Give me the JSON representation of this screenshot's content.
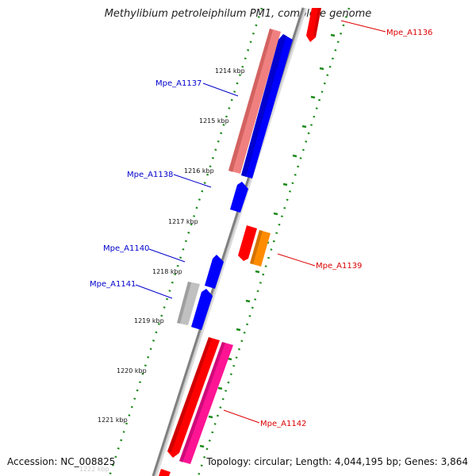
{
  "title": "Methylibium petroleiphilum PM1, complete genome",
  "accession": "Accession: NC_008825",
  "summary": "Topology: circular; Length: 4,044,195 bp; Genes: 3,864",
  "ticks": [
    {
      "label": "1214 kbp"
    },
    {
      "label": "1215 kbp"
    },
    {
      "label": "1216 kbp"
    },
    {
      "label": "1217 kbp"
    },
    {
      "label": "1218 kbp"
    },
    {
      "label": "1219 kbp"
    },
    {
      "label": "1220 kbp"
    },
    {
      "label": "1221 kbp"
    },
    {
      "label": "1222 kbp"
    }
  ],
  "genes": [
    {
      "name": "Mpe_A1136",
      "strand": "reverse",
      "color": "#ff0000"
    },
    {
      "name": "Mpe_A1137",
      "strand": "forward",
      "color": "#0000ff"
    },
    {
      "name": "Mpe_A1138",
      "strand": "forward",
      "color": "#0000ff"
    },
    {
      "name": "Mpe_A1139",
      "strand": "reverse",
      "color": "#ff0000"
    },
    {
      "name": "Mpe_A1140",
      "strand": "forward",
      "color": "#0000ff"
    },
    {
      "name": "Mpe_A1141",
      "strand": "forward",
      "color": "#0000ff"
    },
    {
      "name": "Mpe_A1142",
      "strand": "reverse",
      "color": "#ff0000"
    }
  ],
  "colors": {
    "backbone": "#888888",
    "tick_dots": "#1a8a1a",
    "forward_label": "#0000cc",
    "reverse_label": "#dd0000",
    "rna_pink": "#f08080",
    "rna_magenta": "#ff1493",
    "orange": "#ff8c00",
    "gray": "#c0c0c0"
  }
}
